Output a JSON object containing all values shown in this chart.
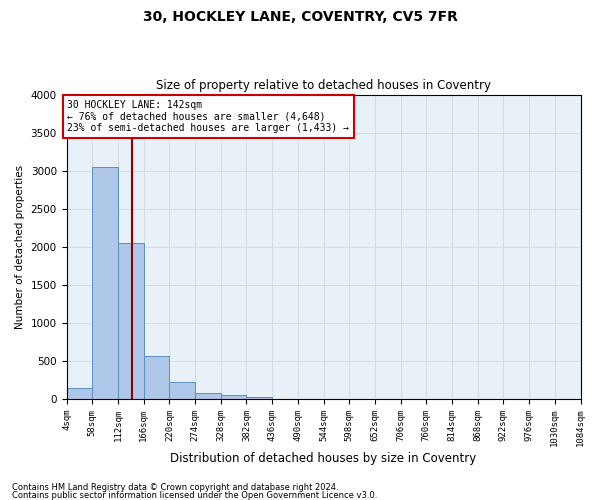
{
  "title": "30, HOCKLEY LANE, COVENTRY, CV5 7FR",
  "subtitle": "Size of property relative to detached houses in Coventry",
  "xlabel": "Distribution of detached houses by size in Coventry",
  "ylabel": "Number of detached properties",
  "footer_line1": "Contains HM Land Registry data © Crown copyright and database right 2024.",
  "footer_line2": "Contains public sector information licensed under the Open Government Licence v3.0.",
  "annotation_line1": "30 HOCKLEY LANE: 142sqm",
  "annotation_line2": "← 76% of detached houses are smaller (4,648)",
  "annotation_line3": "23% of semi-detached houses are larger (1,433) →",
  "property_size": 142,
  "bin_width": 54,
  "bins_start": 4,
  "num_bins": 20,
  "bar_values": [
    150,
    3050,
    2050,
    560,
    220,
    80,
    55,
    30,
    0,
    0,
    0,
    0,
    0,
    0,
    0,
    0,
    0,
    0,
    0,
    0
  ],
  "bar_color": "#aec6e8",
  "bar_edge_color": "#5a8fc2",
  "vline_color": "#8b0000",
  "vline_x": 142,
  "grid_color": "#d0dce8",
  "background_color": "#e8f0f8",
  "ylim": [
    0,
    4000
  ],
  "xlim": [
    4,
    1084
  ],
  "tick_labels": [
    "4sqm",
    "58sqm",
    "112sqm",
    "166sqm",
    "220sqm",
    "274sqm",
    "328sqm",
    "382sqm",
    "436sqm",
    "490sqm",
    "544sqm",
    "598sqm",
    "652sqm",
    "706sqm",
    "760sqm",
    "814sqm",
    "868sqm",
    "922sqm",
    "976sqm",
    "1030sqm",
    "1084sqm"
  ],
  "annotation_box_color": "#cc0000",
  "title_fontsize": 10,
  "subtitle_fontsize": 8.5,
  "ylabel_fontsize": 7.5,
  "xlabel_fontsize": 8.5,
  "tick_fontsize": 6.5,
  "ytick_fontsize": 7.5,
  "annotation_fontsize": 7,
  "footer_fontsize": 6
}
